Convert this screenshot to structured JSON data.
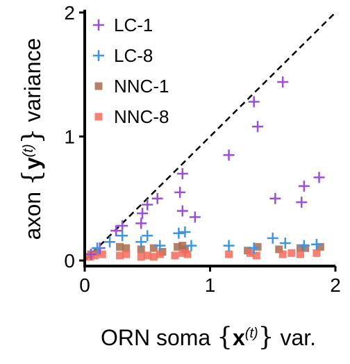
{
  "chart_data": {
    "type": "scatter",
    "xlabel": {
      "prefix": "ORN soma ",
      "lbrace": "{",
      "var": "x",
      "sup": "(t)",
      "rbrace": "}",
      "suffix": " var."
    },
    "ylabel": {
      "prefix": "axon ",
      "lbrace": "{",
      "var": "y",
      "sup": "(t)",
      "rbrace": "}",
      "suffix": " variance"
    },
    "xlim": [
      0,
      2
    ],
    "ylim": [
      0,
      2
    ],
    "xticks": [
      "0",
      "1",
      "2"
    ],
    "yticks": [
      "0",
      "1",
      "2"
    ],
    "diagonal": "y = x (dashed)",
    "legend_position": "top-left",
    "series": [
      {
        "name": "LC-1",
        "marker": "plus",
        "color": "#9B4FD6",
        "points": [
          [
            0.05,
            0.05
          ],
          [
            0.12,
            0.1
          ],
          [
            0.25,
            0.24
          ],
          [
            0.3,
            0.28
          ],
          [
            0.45,
            0.3
          ],
          [
            0.46,
            0.38
          ],
          [
            0.5,
            0.45
          ],
          [
            0.58,
            0.5
          ],
          [
            0.76,
            0.55
          ],
          [
            0.78,
            0.7
          ],
          [
            0.78,
            0.4
          ],
          [
            0.88,
            0.35
          ],
          [
            1.15,
            0.85
          ],
          [
            1.35,
            1.28
          ],
          [
            1.38,
            1.08
          ],
          [
            1.58,
            1.44
          ],
          [
            1.52,
            0.5
          ],
          [
            1.73,
            0.47
          ],
          [
            1.75,
            0.6
          ],
          [
            1.87,
            0.67
          ]
        ]
      },
      {
        "name": "LC-8",
        "marker": "plus",
        "color": "#3E95E0",
        "points": [
          [
            0.1,
            0.1
          ],
          [
            0.2,
            0.15
          ],
          [
            0.3,
            0.2
          ],
          [
            0.45,
            0.15
          ],
          [
            0.5,
            0.2
          ],
          [
            0.6,
            0.12
          ],
          [
            0.75,
            0.22
          ],
          [
            0.8,
            0.23
          ],
          [
            0.85,
            0.12
          ],
          [
            1.15,
            0.12
          ],
          [
            1.35,
            0.1
          ],
          [
            1.5,
            0.18
          ],
          [
            1.6,
            0.14
          ],
          [
            1.75,
            0.12
          ],
          [
            1.85,
            0.13
          ]
        ]
      },
      {
        "name": "NNC-1",
        "marker": "square",
        "color": "#A86B4E",
        "points": [
          [
            0.05,
            0.05
          ],
          [
            0.1,
            0.07
          ],
          [
            0.28,
            0.11
          ],
          [
            0.33,
            0.1
          ],
          [
            0.45,
            0.09
          ],
          [
            0.55,
            0.1
          ],
          [
            0.62,
            0.07
          ],
          [
            0.74,
            0.11
          ],
          [
            0.78,
            0.12
          ],
          [
            0.8,
            0.09
          ],
          [
            1.3,
            0.08
          ],
          [
            1.38,
            0.11
          ],
          [
            1.55,
            0.09
          ],
          [
            1.72,
            0.1
          ],
          [
            1.76,
            0.1
          ],
          [
            1.88,
            0.11
          ]
        ]
      },
      {
        "name": "NNC-8",
        "marker": "square",
        "color": "#F26B5B",
        "points": [
          [
            0.04,
            0.03
          ],
          [
            0.08,
            0.04
          ],
          [
            0.14,
            0.05
          ],
          [
            0.28,
            0.04
          ],
          [
            0.33,
            0.05
          ],
          [
            0.45,
            0.03
          ],
          [
            0.5,
            0.04
          ],
          [
            0.55,
            0.03
          ],
          [
            0.6,
            0.05
          ],
          [
            0.72,
            0.04
          ],
          [
            0.78,
            0.06
          ],
          [
            0.82,
            0.05
          ],
          [
            1.15,
            0.05
          ],
          [
            1.32,
            0.06
          ],
          [
            1.37,
            0.04
          ],
          [
            1.58,
            0.05
          ],
          [
            1.65,
            0.06
          ],
          [
            1.72,
            0.05
          ],
          [
            1.85,
            0.06
          ]
        ]
      }
    ]
  }
}
